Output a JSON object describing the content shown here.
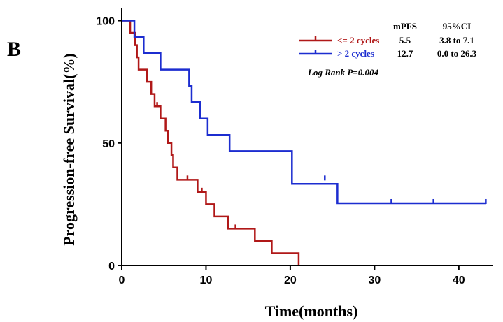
{
  "panel_label": "B",
  "chart_data": {
    "type": "line",
    "subtype": "kaplan-meier",
    "xlabel": "Time(months)",
    "ylabel": "Progression-free Survival(%)",
    "xlim": [
      0,
      44
    ],
    "ylim": [
      0,
      105
    ],
    "xticks": [
      0,
      10,
      20,
      30,
      40
    ],
    "yticks": [
      0,
      50,
      100
    ],
    "grid": false,
    "legend_position": "top-right",
    "table_headers": {
      "mpfs": "mPFS",
      "ci": "95%CI"
    },
    "log_rank": "Log Rank P=0.004",
    "series": [
      {
        "name": "<= 2 cycles",
        "color": "#b01818",
        "mpfs": "5.5",
        "ci": "3.8 to 7.1",
        "steps": [
          [
            0,
            100
          ],
          [
            1.0,
            95
          ],
          [
            1.6,
            90
          ],
          [
            1.8,
            85
          ],
          [
            2.0,
            80
          ],
          [
            3.0,
            75
          ],
          [
            3.5,
            70
          ],
          [
            3.9,
            65
          ],
          [
            4.6,
            60
          ],
          [
            5.2,
            55
          ],
          [
            5.5,
            50
          ],
          [
            5.9,
            45
          ],
          [
            6.1,
            40
          ],
          [
            6.6,
            35
          ],
          [
            9.0,
            30
          ],
          [
            10.0,
            25
          ],
          [
            11.0,
            20
          ],
          [
            12.6,
            15
          ],
          [
            15.8,
            10
          ],
          [
            17.8,
            5
          ],
          [
            21.0,
            0
          ]
        ],
        "censored": [
          [
            4.2,
            65
          ],
          [
            7.8,
            35
          ],
          [
            9.5,
            30
          ],
          [
            13.5,
            15
          ]
        ]
      },
      {
        "name": "> 2 cycles",
        "color": "#1c2dd0",
        "mpfs": "12.7",
        "ci": "0.0 to 26.3",
        "steps": [
          [
            0,
            100
          ],
          [
            1.5,
            93.3
          ],
          [
            2.6,
            86.7
          ],
          [
            4.6,
            80
          ],
          [
            8.0,
            73.3
          ],
          [
            8.3,
            66.7
          ],
          [
            9.3,
            60
          ],
          [
            10.2,
            53.3
          ],
          [
            12.8,
            46.7
          ],
          [
            20.2,
            33.3
          ],
          [
            25.6,
            25.4
          ],
          [
            43.2,
            25.4
          ]
        ],
        "censored": [
          [
            24.1,
            35
          ],
          [
            32.0,
            25.4
          ],
          [
            37.0,
            25.4
          ],
          [
            43.2,
            25.4
          ]
        ]
      }
    ]
  }
}
